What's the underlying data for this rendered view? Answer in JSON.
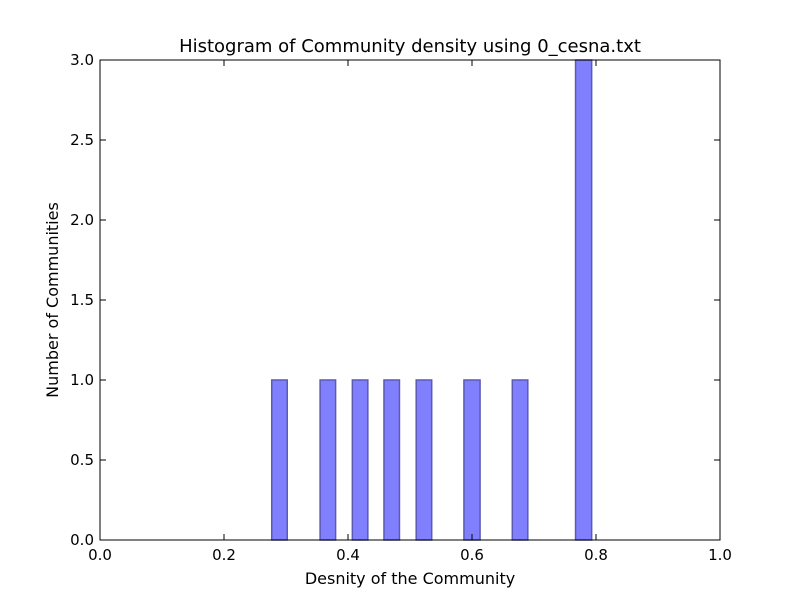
{
  "chart_data": {
    "type": "bar",
    "title": "Histogram of Community density using 0_cesna.txt",
    "xlabel": "Desnity of the Community",
    "ylabel": "Number of Communities",
    "xlim": [
      0.0,
      1.0
    ],
    "ylim": [
      0.0,
      3.0
    ],
    "xticks": [
      "0.0",
      "0.2",
      "0.4",
      "0.6",
      "0.8",
      "1.0"
    ],
    "yticks": [
      "0.0",
      "0.5",
      "1.0",
      "1.5",
      "2.0",
      "2.5",
      "3.0"
    ],
    "grid": false,
    "bins": [
      {
        "x0": 0.277,
        "x1": 0.302,
        "count": 1
      },
      {
        "x0": 0.355,
        "x1": 0.38,
        "count": 1
      },
      {
        "x0": 0.407,
        "x1": 0.432,
        "count": 1
      },
      {
        "x0": 0.458,
        "x1": 0.483,
        "count": 1
      },
      {
        "x0": 0.51,
        "x1": 0.535,
        "count": 1
      },
      {
        "x0": 0.587,
        "x1": 0.613,
        "count": 1
      },
      {
        "x0": 0.665,
        "x1": 0.69,
        "count": 1
      },
      {
        "x0": 0.767,
        "x1": 0.793,
        "count": 3
      }
    ],
    "colors": {
      "bar_fill": "#8080ff",
      "bar_edge": "#5a5ab0",
      "axis": "#000000"
    }
  }
}
